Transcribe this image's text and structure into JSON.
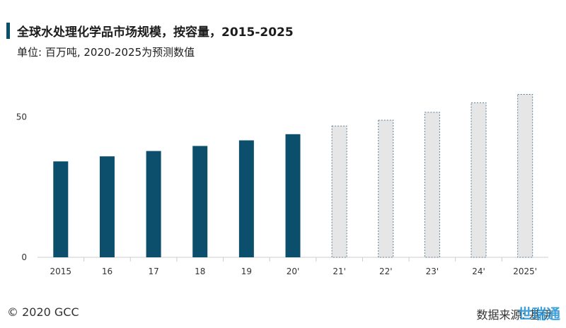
{
  "header": {
    "title": "全球水处理化学品市场规模，按容量，2015-2025",
    "subtitle": "单位: 百万吨, 2020-2025为预测数值"
  },
  "footer": {
    "copyright": "© 2020 GCC",
    "source": "数据来源: 基伊",
    "watermark": "世瑞通"
  },
  "colors": {
    "actual": "#0b4f6c",
    "forecast_fill": "#e6e6e6",
    "forecast_stroke": "#5a7f95",
    "axis": "#cccccc"
  },
  "chart_data": {
    "type": "bar",
    "title": "全球水处理化学品市场规模，按容量，2015-2025",
    "subtitle": "单位: 百万吨, 2020-2025为预测数值",
    "categories": [
      "2015",
      "16",
      "17",
      "18",
      "19",
      "20'",
      "21'",
      "22'",
      "23'",
      "24'",
      "2025'"
    ],
    "values": [
      34.2,
      36.0,
      37.9,
      39.7,
      41.7,
      43.9,
      46.8,
      48.9,
      51.7,
      55.1,
      58.1
    ],
    "forecast_from_index": 6,
    "yticks": [
      0,
      50
    ],
    "ylim": [
      0,
      62
    ],
    "grid": false,
    "xlabel": "",
    "ylabel": ""
  }
}
